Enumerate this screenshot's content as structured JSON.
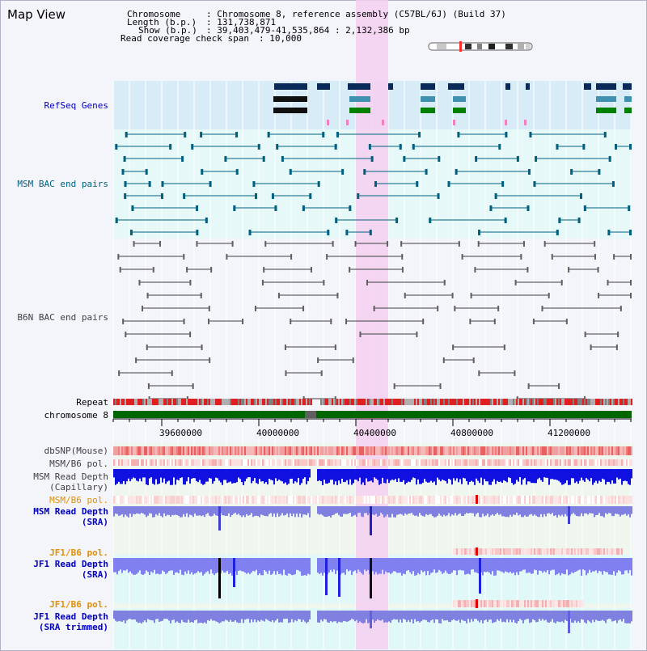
{
  "window": {
    "title": "Map View"
  },
  "info": {
    "chromosome_key": "Chromosome",
    "chromosome_val": ": Chromosome 8, reference assembly (C57BL/6J) (Build 37)",
    "length_key": "Length (b.p.)",
    "length_val": ": 131,738,871",
    "show_key": "Show (b.p.)",
    "show_val": ": 39,403,479-41,535,864 : 2,132,386 bp",
    "coverage_key": "Read coverage check span",
    "coverage_val": ": 10,000"
  },
  "tracks": {
    "refseq": "RefSeq Genes",
    "msm_bac": "MSM BAC end pairs",
    "b6n_bac": "B6N BAC end pairs",
    "repeat": "Repeat",
    "chromosome": "chromosome 8",
    "dbsnp": "dbSNP(Mouse)",
    "msm_b6_pol": "MSM/B6 pol.",
    "msm_depth_cap_1": "MSM Read Depth",
    "msm_depth_cap_2": "(Capillary)",
    "msm_b6_pol_2": "MSM/B6 pol.",
    "msm_depth_sra_1": "MSM Read Depth",
    "msm_depth_sra_2": "(SRA)",
    "jf1_b6_pol": "JF1/B6 pol.",
    "jf1_depth_sra_1": "JF1 Read Depth",
    "jf1_depth_sra_2": "(SRA)",
    "jf1_b6_pol_2": "JF1/B6 pol.",
    "jf1_depth_trim_1": "JF1 Read Depth",
    "jf1_depth_trim_2": "(SRA trimmed)"
  },
  "axis": {
    "ticks": [
      "39600000",
      "40000000",
      "40400000",
      "40800000",
      "41200000"
    ]
  },
  "colors": {
    "msm_label": "#006080",
    "refseq_label": "#0000c0",
    "b6n_label": "#404040",
    "pol_label": "#e09000",
    "depth_label": "#0000c0",
    "highlight": "#f5d0f0",
    "chromosome_bar": "#006600"
  }
}
